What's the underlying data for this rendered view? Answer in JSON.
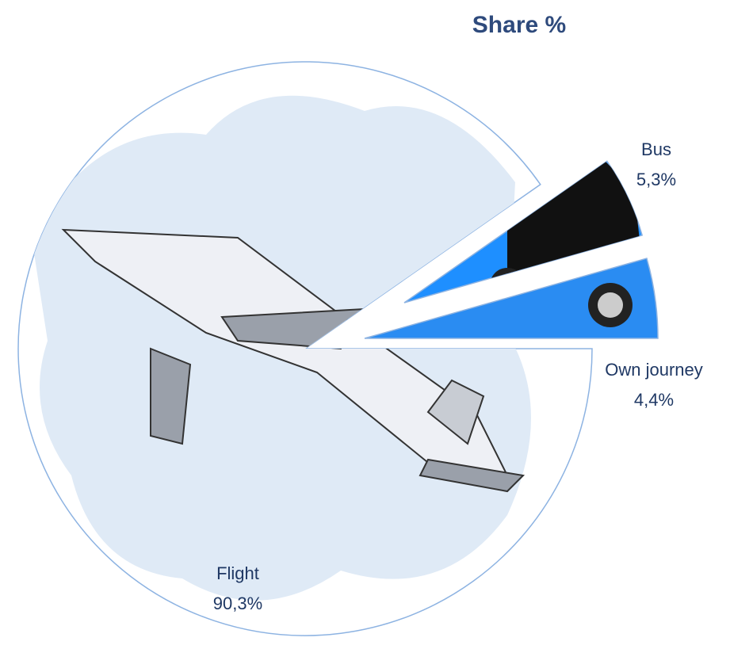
{
  "chart_data": {
    "type": "pie",
    "title": "Share %",
    "categories": [
      "Flight",
      "Bus",
      "Own journey"
    ],
    "values": [
      90.3,
      5.3,
      4.4
    ],
    "value_labels": [
      "90,3%",
      "5,3%",
      "4,4%"
    ],
    "colors": [
      "#ffffff",
      "#1e8fff",
      "#2a8cf2"
    ]
  }
}
